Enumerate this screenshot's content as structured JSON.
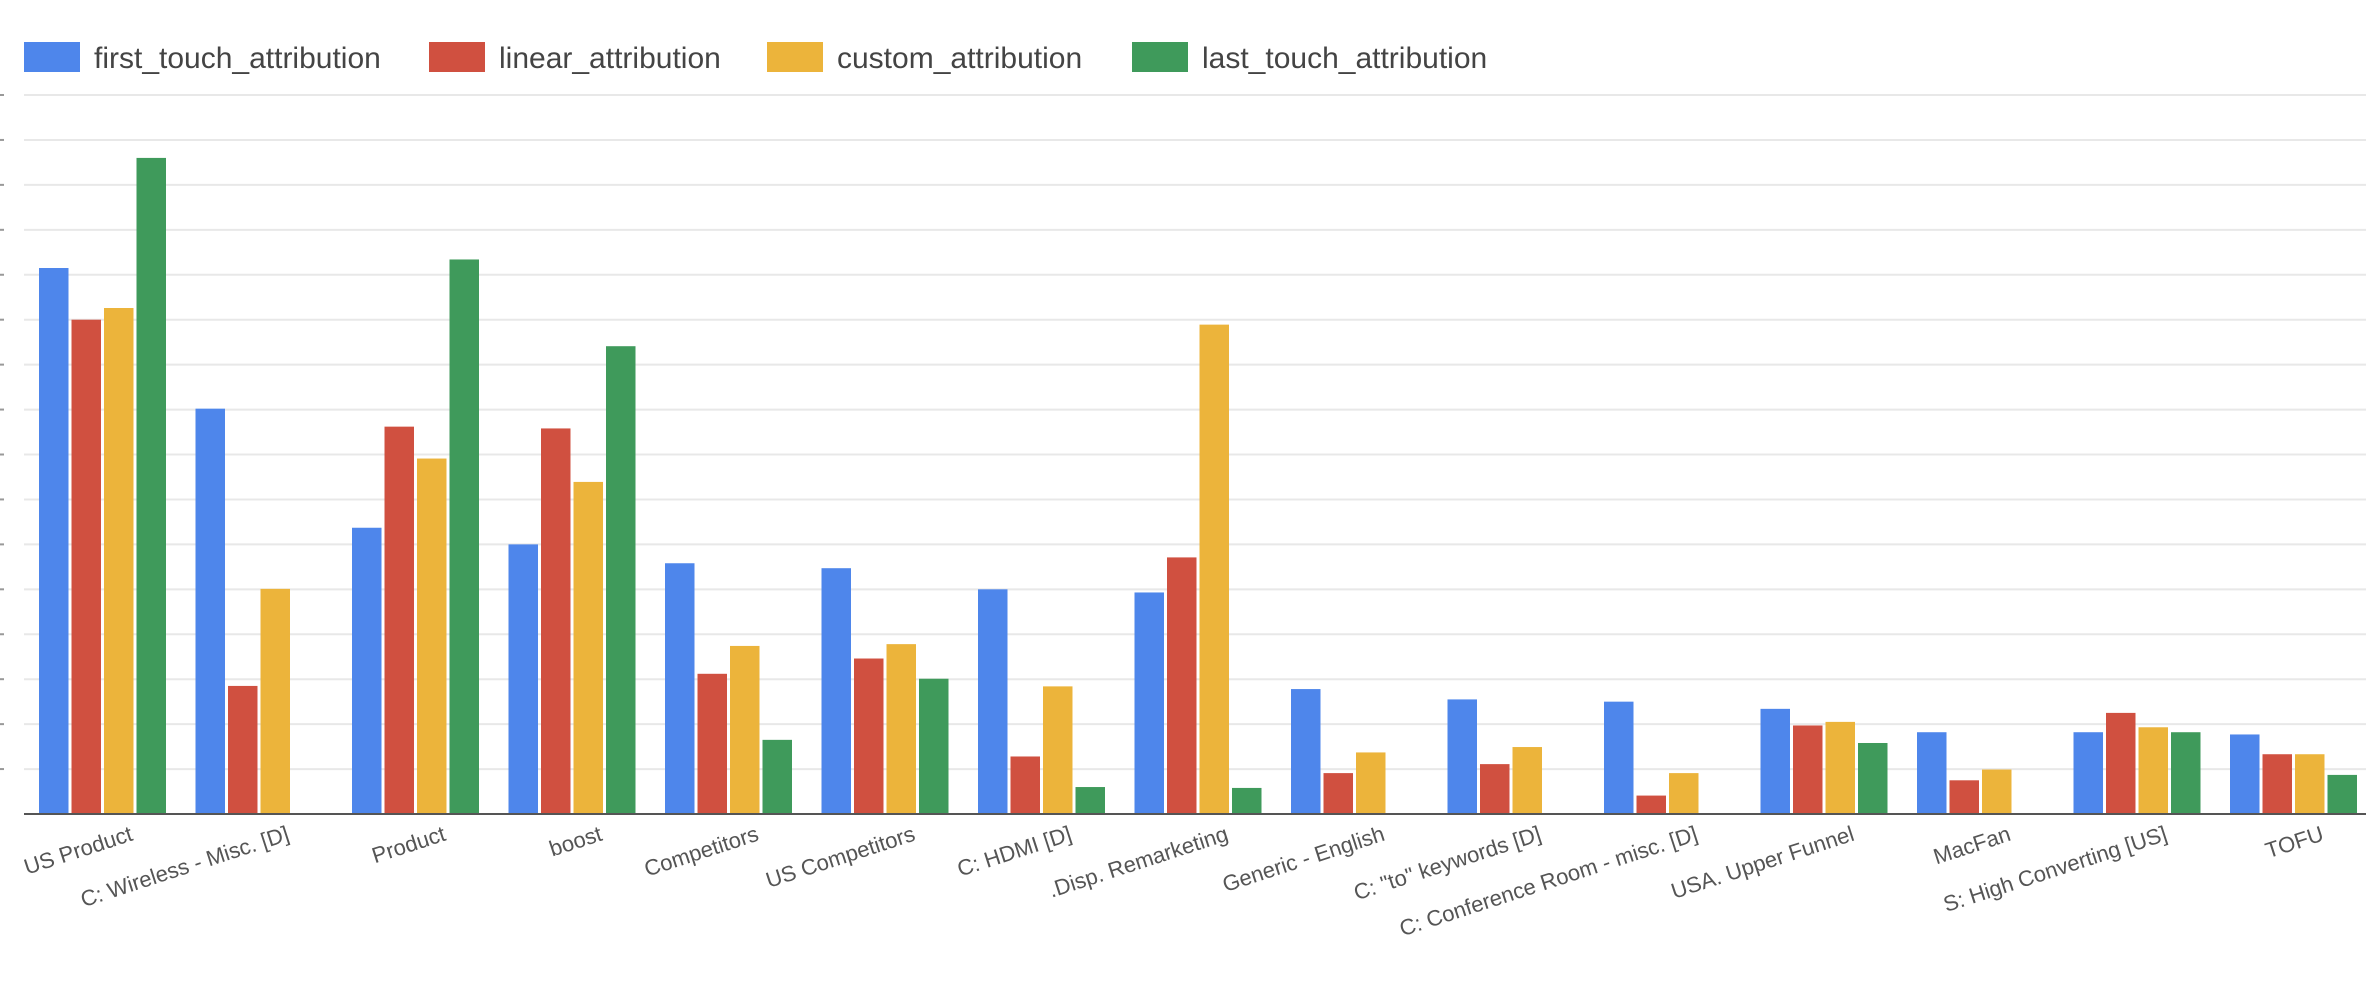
{
  "chart_data": {
    "type": "bar",
    "title": "",
    "xlabel": "",
    "ylabel": "",
    "ylim": [
      0,
      16
    ],
    "grid": true,
    "legend_position": "top-left",
    "categories": [
      "US Product",
      "C: Wireless - Misc. [D]",
      "Product",
      "boost",
      "Competitors",
      "US Competitors",
      "C: HDMI [D]",
      ".Disp. Remarketing",
      "Generic - English",
      "C: \"to\" keywords [D]",
      "C: Conference Room - misc. [D]",
      "USA. Upper Funnel",
      "MacFan",
      "S: High Converting [US]",
      "TOFU"
    ],
    "series": [
      {
        "name": "first_touch_attribution",
        "color": "#4e86eb",
        "values": [
          12.15,
          9.02,
          6.37,
          6.0,
          5.58,
          5.47,
          5.0,
          4.93,
          2.78,
          2.55,
          2.5,
          2.34,
          1.82,
          1.82,
          1.77
        ]
      },
      {
        "name": "linear_attribution",
        "color": "#d05040",
        "values": [
          11.0,
          2.85,
          8.62,
          8.58,
          3.12,
          3.46,
          1.28,
          5.71,
          0.91,
          1.11,
          0.41,
          1.97,
          0.75,
          2.25,
          1.33
        ]
      },
      {
        "name": "custom_attribution",
        "color": "#ecb43b",
        "values": [
          11.26,
          5.01,
          7.91,
          7.39,
          3.74,
          3.78,
          2.84,
          10.89,
          1.37,
          1.49,
          0.91,
          2.05,
          0.99,
          1.93,
          1.33
        ]
      },
      {
        "name": "last_touch_attribution",
        "color": "#3f9a5b",
        "values": [
          14.6,
          0,
          12.34,
          10.41,
          1.65,
          3.01,
          0.6,
          0.58,
          0,
          0,
          0,
          1.58,
          0,
          1.82,
          0.87
        ]
      }
    ]
  }
}
